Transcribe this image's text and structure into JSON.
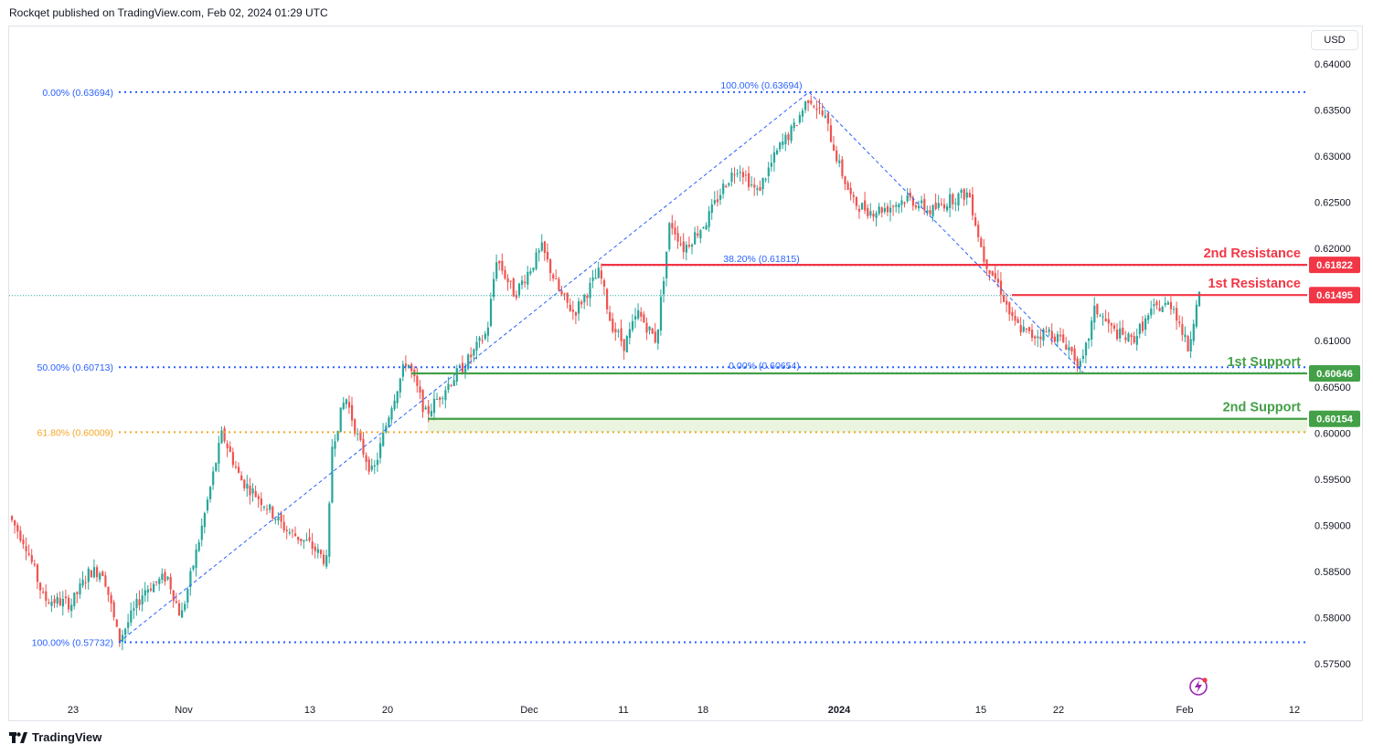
{
  "header": {
    "text": "Rockqet published on TradingView.com, Feb 02, 2024 01:29 UTC"
  },
  "currency": "USD",
  "footer": {
    "brand": "TradingView"
  },
  "colors": {
    "up": "#26a69a",
    "down": "#ef5350",
    "resistance": "#f23645",
    "support": "#43a047",
    "fib_blue": "#2962ff",
    "fib_orange": "#f5a623",
    "text": "#131722",
    "axis_text": "#131722"
  },
  "chart_data": {
    "type": "candlestick",
    "instrument_currency": "USD",
    "y_ticks": [
      "0.64000",
      "0.63500",
      "0.63000",
      "0.62500",
      "0.62000",
      "0.61500",
      "0.61000",
      "0.60500",
      "0.60000",
      "0.59500",
      "0.59000",
      "0.58500",
      "0.58000",
      "0.57500"
    ],
    "x_ticks": [
      "23",
      "Nov",
      "13",
      "20",
      "Dec",
      "11",
      "18",
      "2024",
      "15",
      "22",
      "Feb",
      "12"
    ],
    "horizontal_levels": [
      {
        "label": "2nd Resistance",
        "price": 0.61822,
        "price_label": "0.61822",
        "kind": "resistance"
      },
      {
        "label": "1st Resistance",
        "price": 0.61495,
        "price_label": "0.61495",
        "kind": "resistance"
      },
      {
        "label": "1st Support",
        "price": 0.60646,
        "price_label": "0.60646",
        "kind": "support"
      },
      {
        "label": "2nd Support",
        "price": 0.60154,
        "price_label": "0.60154",
        "kind": "support"
      }
    ],
    "fib_retracement_1": [
      {
        "text": "0.00% (0.63694)",
        "price": 0.63694
      },
      {
        "text": "50.00% (0.60713)",
        "price": 0.60713
      },
      {
        "text": "61.80% (0.60009)",
        "price": 0.60009
      },
      {
        "text": "100.00% (0.57732)",
        "price": 0.57732
      }
    ],
    "fib_retracement_2": [
      {
        "text": "100.00% (0.63694)",
        "price": 0.63694
      },
      {
        "text": "38.20% (0.61815)",
        "price": 0.61815
      },
      {
        "text": "0.00% (0.60654)",
        "price": 0.60654
      }
    ],
    "last_price_approx": 0.6149,
    "swing_points": [
      {
        "time": "Oct 26",
        "price": 0.57732,
        "kind": "low"
      },
      {
        "time": "Dec 28",
        "price": 0.63694,
        "kind": "high"
      },
      {
        "time": "Jan 23",
        "price": 0.60654,
        "kind": "low"
      }
    ]
  }
}
